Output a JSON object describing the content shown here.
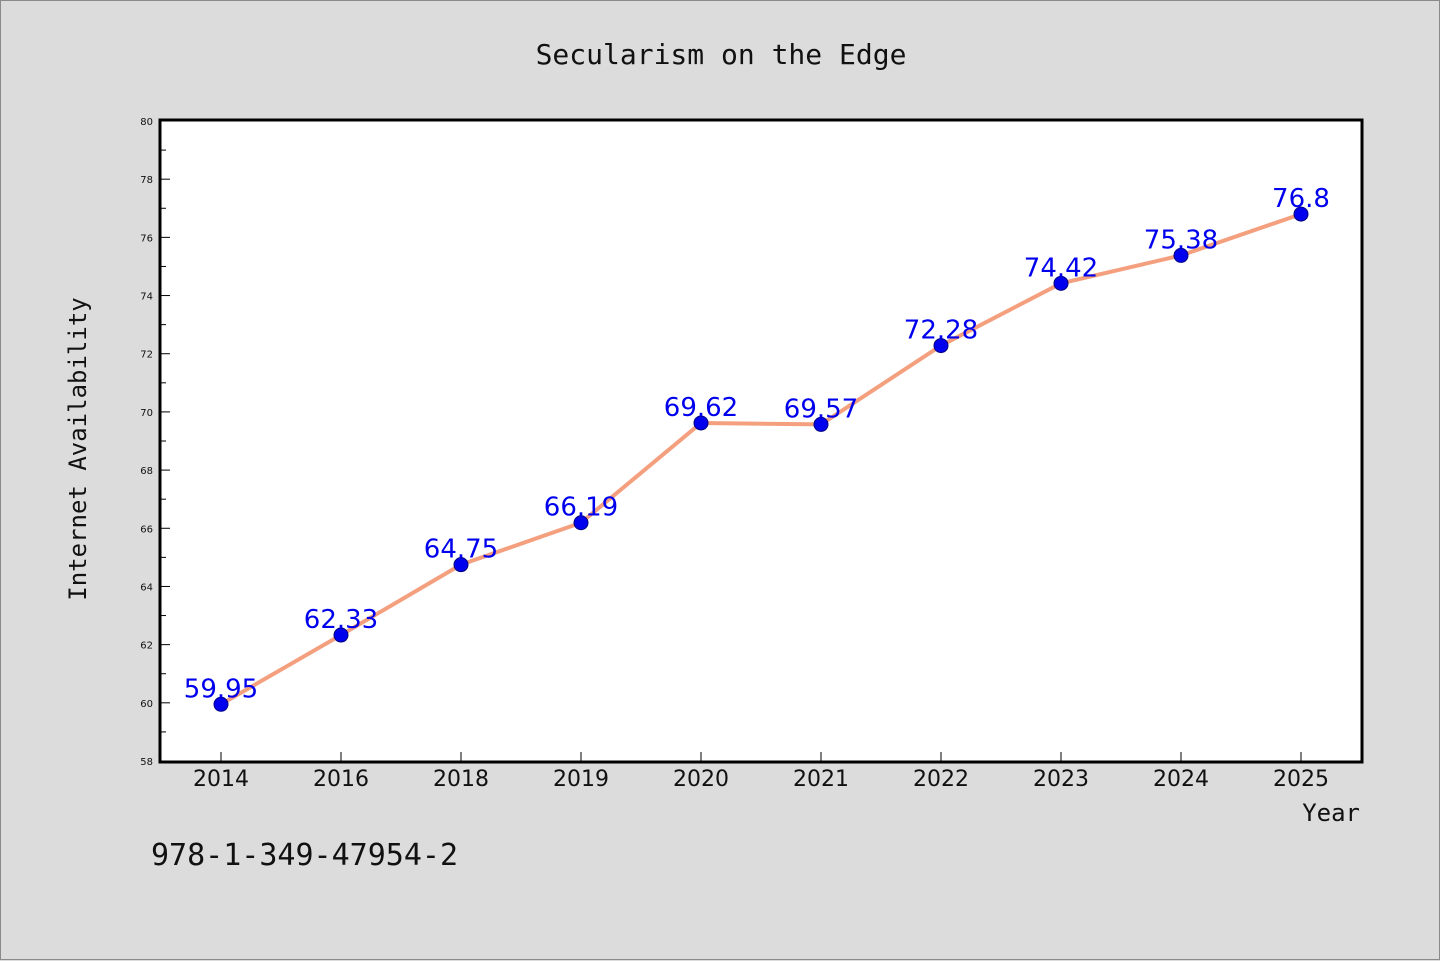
{
  "chart_data": {
    "type": "line",
    "title": "Secularism on the Edge",
    "xlabel": "Year",
    "ylabel": "Internet Availability",
    "categories": [
      "2014",
      "2016",
      "2018",
      "2019",
      "2020",
      "2021",
      "2022",
      "2023",
      "2024",
      "2025"
    ],
    "series": [
      {
        "values": [
          59.95,
          62.33,
          64.75,
          66.19,
          69.62,
          69.57,
          72.28,
          74.42,
          75.38,
          76.8
        ]
      }
    ],
    "data_labels": [
      "59.95",
      "62.33",
      "64.75",
      "66.19",
      "69.62",
      "69.57",
      "72.28",
      "74.42",
      "75.38",
      "76.8"
    ],
    "ylim": [
      58,
      80
    ],
    "y_ticks": [
      "58",
      "60",
      "62",
      "64",
      "66",
      "68",
      "70",
      "72",
      "74",
      "76",
      "78",
      "80"
    ],
    "grid": false,
    "legend": "none",
    "colors": {
      "line": "#f4a07e",
      "marker": "#0000ee",
      "data_label": "#0000ee",
      "plot_background": "#ffffff",
      "page_background": "#dcdcdc"
    }
  },
  "footer": {
    "isbn": "978-1-349-47954-2"
  }
}
